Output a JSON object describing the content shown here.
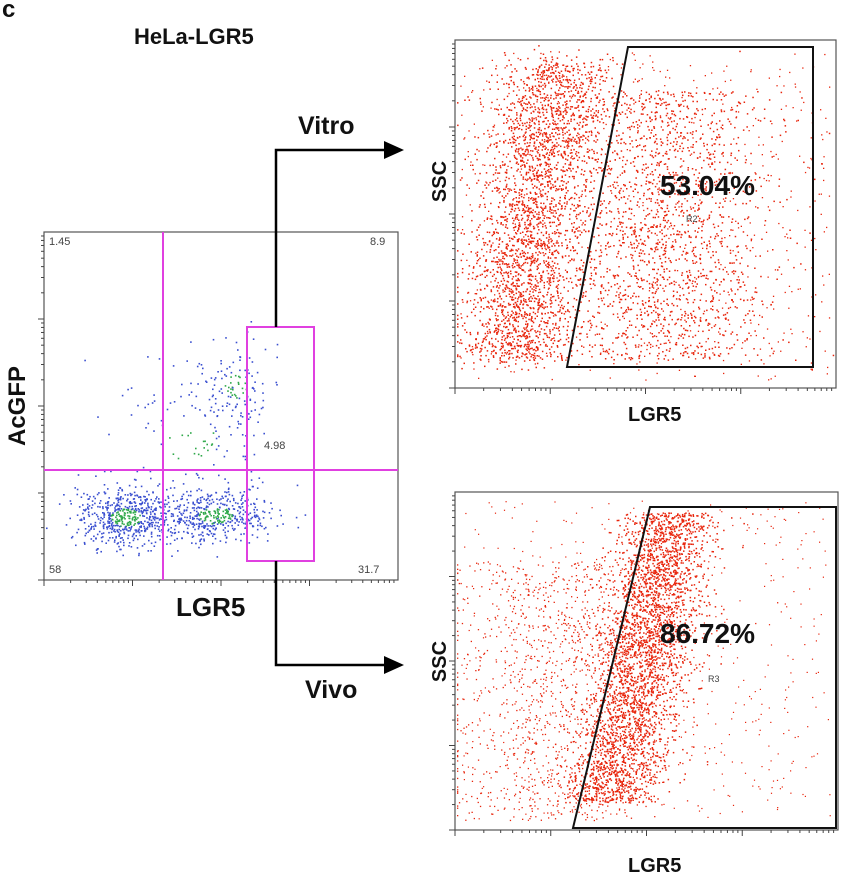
{
  "panel_letter": "c",
  "title": "HeLa-LGR5",
  "arrows": {
    "top_label": "Vitro",
    "bottom_label": "Vivo"
  },
  "colors": {
    "quadrant_lines": "#e040e0",
    "density_low": "#3a4fd0",
    "density_high": "#2fa84a",
    "events_red": "#e8250c",
    "gate_line": "#000000"
  },
  "chart_data": [
    {
      "type": "scatter",
      "plot": "quadrant dot plot",
      "xlabel": "LGR5",
      "ylabel": "AcGFP",
      "x_scale": "log",
      "y_scale": "log",
      "quadrants": {
        "top_left": "1.45",
        "top_right": "8.9",
        "bottom_left": "58",
        "bottom_right": "31.7"
      },
      "gate_value": "4.98"
    },
    {
      "type": "scatter",
      "plot": "Vitro",
      "xlabel": "LGR5",
      "ylabel": "SSC",
      "x_scale": "log",
      "gate_name": "R2",
      "gate_percent": "53.04%"
    },
    {
      "type": "scatter",
      "plot": "Vivo",
      "xlabel": "LGR5",
      "ylabel": "SSC",
      "x_scale": "log",
      "gate_name": "R3",
      "gate_percent": "86.72%"
    }
  ]
}
